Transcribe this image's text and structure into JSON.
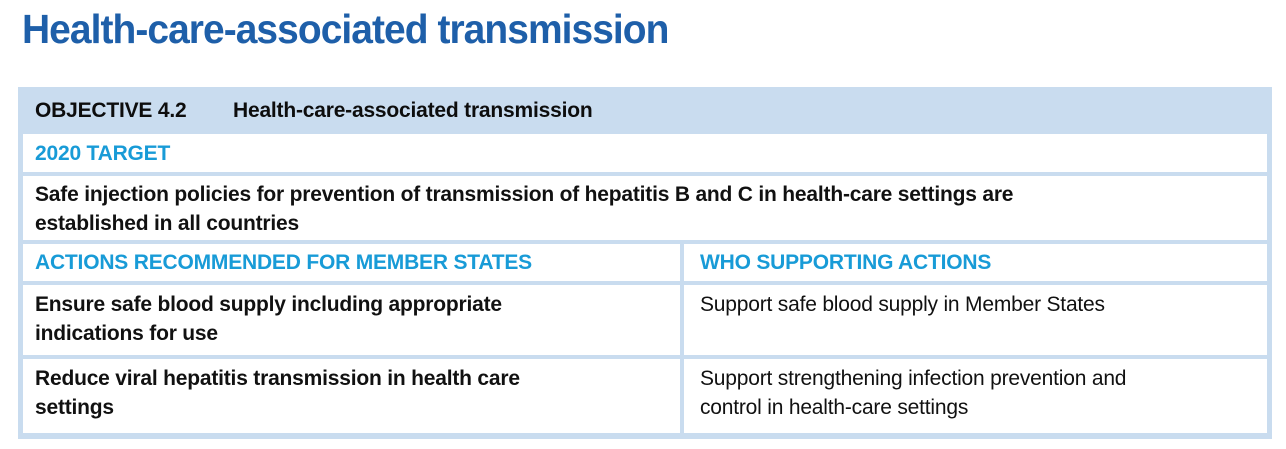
{
  "page": {
    "title": "Health-care-associated transmission"
  },
  "colors": {
    "title_blue": "#1e5fa9",
    "accent_cyan": "#189bd7",
    "table_frame_blue": "#c9dcef",
    "text_black": "#111111",
    "background": "#ffffff"
  },
  "objective_table": {
    "objective_label": "OBJECTIVE 4.2",
    "objective_title": "Health-care-associated transmission",
    "target_heading": "2020 TARGET",
    "target_text": "Safe injection policies for prevention of transmission of hepatitis B and C in health-care settings are\nestablished in all countries",
    "column_headers": {
      "member_states": "ACTIONS RECOMMENDED FOR MEMBER STATES",
      "who": "WHO SUPPORTING ACTIONS"
    },
    "rows": [
      {
        "member_state_action": "Ensure safe blood supply including appropriate\nindications for use",
        "who_action": "Support safe blood supply in Member States"
      },
      {
        "member_state_action": "Reduce viral hepatitis transmission in health care\nsettings",
        "who_action": "Support strengthening infection prevention and\ncontrol in health-care settings"
      }
    ]
  }
}
